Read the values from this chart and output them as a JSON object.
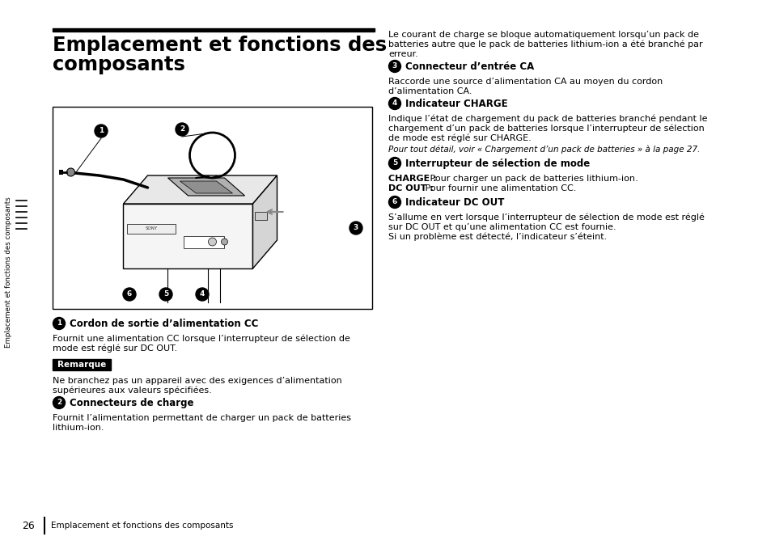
{
  "bg_color": "#ffffff",
  "page_footer": "Emplacement et fonctions des composants",
  "sidebar_text": "Emplacement et fonctions des composants",
  "title_line1": "Emplacement et fonctions des",
  "title_line2": "composants",
  "right_intro": "Le courant de charge se bloque automatiquement lorsqu’un pack de\nbatteries autre que le pack de batteries lithium-ion a été branché par\nerreur.",
  "sec3_head": "Connecteur d’entrée CA",
  "sec3_body": "Raccorde une source d’alimentation CA au moyen du cordon\nd’alimentation CA.",
  "sec4_head": "Indicateur CHARGE",
  "sec4_body": "Indique l’état de chargement du pack de batteries branché pendant le\nchargement d’un pack de batteries lorsque l’interrupteur de sélection\nde mode est réglé sur CHARGE.",
  "sec4_italic": "Pour tout détail, voir « Chargement d’un pack de batteries » à la page 27.",
  "sec5_head": "Interrupteur de sélection de mode",
  "sec5_b1": "CHARGE :",
  "sec5_n1": " Pour charger un pack de batteries lithium-ion.",
  "sec5_b2": "DC OUT :",
  "sec5_n2": " Pour fournir une alimentation CC.",
  "sec6_head": "Indicateur DC OUT",
  "sec6_body": "S’allume en vert lorsque l’interrupteur de sélection de mode est réglé\nsur DC OUT et qu’une alimentation CC est fournie.\nSi un problème est détecté, l’indicateur s’éteint.",
  "sec1_head": "Cordon de sortie d’alimentation CC",
  "sec1_body": "Fournit une alimentation CC lorsque l’interrupteur de sélection de\nmode est réglé sur DC OUT.",
  "remark_label": "Remarque",
  "remark_body": "Ne branchez pas un appareil avec des exigences d’alimentation\nsupérieures aux valeurs spécifiées.",
  "sec2_head": "Connecteurs de charge",
  "sec2_body": "Fournit l’alimentation permettant de charger un pack de batteries\nlithium-ion.",
  "page_num": "26"
}
